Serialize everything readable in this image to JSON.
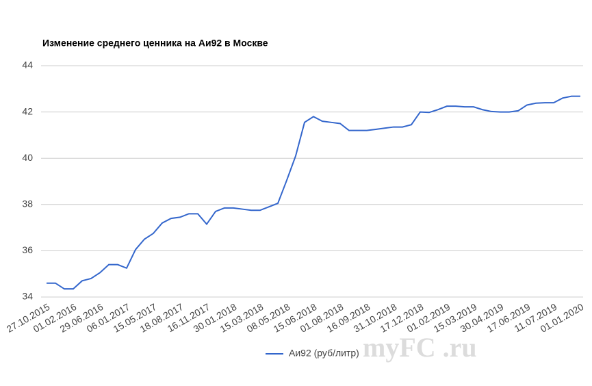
{
  "chart_data": {
    "type": "line",
    "title": "Изменение среднего ценника на Аи92 в Москве",
    "categories": [
      "27.10.2015",
      null,
      null,
      "01.02.2016",
      null,
      null,
      "29.06.2016",
      null,
      null,
      "06.01.2017",
      null,
      null,
      "15.05.2017",
      null,
      null,
      "18.08.2017",
      null,
      null,
      "16.11.2017",
      null,
      null,
      "30.01.2018",
      null,
      null,
      "15.03.2018",
      null,
      null,
      "08.05.2018",
      null,
      null,
      "15.06.2018",
      null,
      null,
      "01.08.2018",
      null,
      null,
      "16.09.2018",
      null,
      null,
      "31.10.2018",
      null,
      null,
      "17.12.2018",
      null,
      null,
      "01.02.2019",
      null,
      null,
      "15.03.2019",
      null,
      null,
      "30.04.2019",
      null,
      null,
      "17.06.2019",
      null,
      null,
      "11.07.2019",
      null,
      null,
      "01.01.2020"
    ],
    "series": [
      {
        "name": "Аи92 (руб/литр)",
        "color": "#3366cc",
        "values": [
          34.6,
          34.6,
          34.35,
          34.35,
          34.7,
          34.8,
          35.05,
          35.4,
          35.4,
          35.25,
          36.05,
          36.5,
          36.75,
          37.2,
          37.4,
          37.45,
          37.6,
          37.6,
          37.15,
          37.7,
          37.85,
          37.85,
          37.8,
          37.75,
          37.75,
          37.9,
          38.05,
          39.05,
          40.1,
          41.55,
          41.8,
          41.6,
          41.55,
          41.5,
          41.2,
          41.2,
          41.2,
          41.25,
          41.3,
          41.35,
          41.35,
          41.45,
          42.0,
          41.98,
          42.1,
          42.25,
          42.25,
          42.22,
          42.22,
          42.1,
          42.02,
          42.0,
          42.0,
          42.05,
          42.3,
          42.38,
          42.4,
          42.4,
          42.6,
          42.68,
          42.68
        ]
      }
    ],
    "ylim": [
      34,
      44
    ],
    "yticks": [
      34,
      36,
      38,
      40,
      42,
      44
    ],
    "grid": true,
    "legend": "bottom",
    "watermark": "myFC .ru"
  }
}
